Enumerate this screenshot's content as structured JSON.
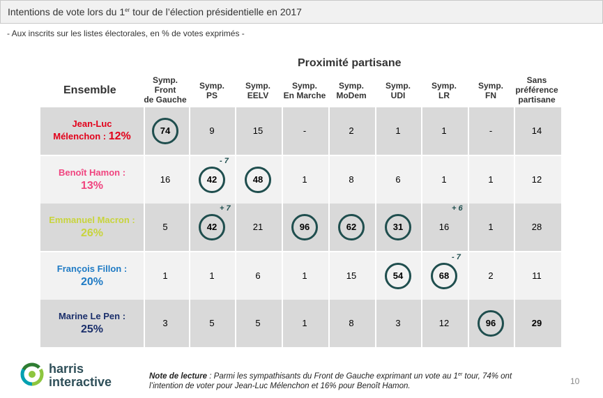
{
  "header": {
    "title_prefix": "Intentions de vote lors du 1",
    "title_sup": "er",
    "title_suffix": " tour de l’élection présidentielle en 2017",
    "subtitle": "- Aux inscrits sur les listes électorales, en % de votes exprimés -"
  },
  "table": {
    "group_header": "Proximité partisane",
    "ensemble_label": "Ensemble",
    "columns": [
      [
        "Symp.",
        "Front",
        "de Gauche"
      ],
      [
        "Symp.",
        "PS"
      ],
      [
        "Symp.",
        "EELV"
      ],
      [
        "Symp.",
        "En Marche"
      ],
      [
        "Symp.",
        "MoDem"
      ],
      [
        "Symp.",
        "UDI"
      ],
      [
        "Symp.",
        "LR"
      ],
      [
        "Symp.",
        "FN"
      ],
      [
        "Sans",
        "préférence",
        "partisane"
      ]
    ]
  },
  "chart_data": {
    "type": "table",
    "title": "Intentions de vote lors du 1er tour de l’élection présidentielle en 2017",
    "subtitle": "- Aux inscrits sur les listes électorales, en % de votes exprimés -",
    "columns": [
      "Symp. Front de Gauche",
      "Symp. PS",
      "Symp. EELV",
      "Symp. En Marche",
      "Symp. MoDem",
      "Symp. UDI",
      "Symp. LR",
      "Symp. FN",
      "Sans préférence partisane"
    ],
    "rows": [
      {
        "name_lines": [
          "Jean-Luc",
          "Mélenchon : "
        ],
        "pct": "12%",
        "name_color": "#e2001a",
        "values": [
          "74",
          "9",
          "15",
          "-",
          "2",
          "1",
          "1",
          "-",
          "14"
        ],
        "circled": [
          0
        ],
        "deltas": [],
        "bold": []
      },
      {
        "name_lines": [
          "Benoît Hamon :"
        ],
        "pct": "13%",
        "name_color": "#f0447f",
        "values": [
          "16",
          "42",
          "48",
          "1",
          "8",
          "6",
          "1",
          "1",
          "12"
        ],
        "circled": [
          1,
          2
        ],
        "deltas": [
          {
            "col": 1,
            "text": "- 7"
          }
        ],
        "bold": []
      },
      {
        "name_lines": [
          "Emmanuel Macron :"
        ],
        "pct": "26%",
        "name_color": "#c8d43c",
        "values": [
          "5",
          "42",
          "21",
          "96",
          "62",
          "31",
          "16",
          "1",
          "28"
        ],
        "circled": [
          1,
          3,
          4,
          5
        ],
        "deltas": [
          {
            "col": 1,
            "text": "+ 7"
          },
          {
            "col": 6,
            "text": "+ 6"
          }
        ],
        "bold": []
      },
      {
        "name_lines": [
          "François Fillon :"
        ],
        "pct": "20%",
        "name_color": "#1e7ac4",
        "values": [
          "1",
          "1",
          "6",
          "1",
          "15",
          "54",
          "68",
          "2",
          "11"
        ],
        "circled": [
          5,
          6
        ],
        "deltas": [
          {
            "col": 6,
            "text": "- 7"
          }
        ],
        "bold": []
      },
      {
        "name_lines": [
          "Marine Le Pen :"
        ],
        "pct": "25%",
        "name_color": "#1b2f6b",
        "values": [
          "3",
          "5",
          "5",
          "1",
          "8",
          "3",
          "12",
          "96",
          "29"
        ],
        "circled": [
          7
        ],
        "deltas": [],
        "bold": [
          8
        ]
      }
    ],
    "circle_color": "#1f4e4e"
  },
  "footer": {
    "logo_line1": "harris",
    "logo_line2": "interactive",
    "note_bold": "Note de lecture",
    "note_pre": " : Parmi les sympathisants du Front de Gauche exprimant un vote au 1",
    "note_sup": "er",
    "note_post": " tour, 74% ont l’intention de voter pour Jean-Luc Mélenchon et 16% pour Benoît Hamon.",
    "page_number": "10"
  }
}
